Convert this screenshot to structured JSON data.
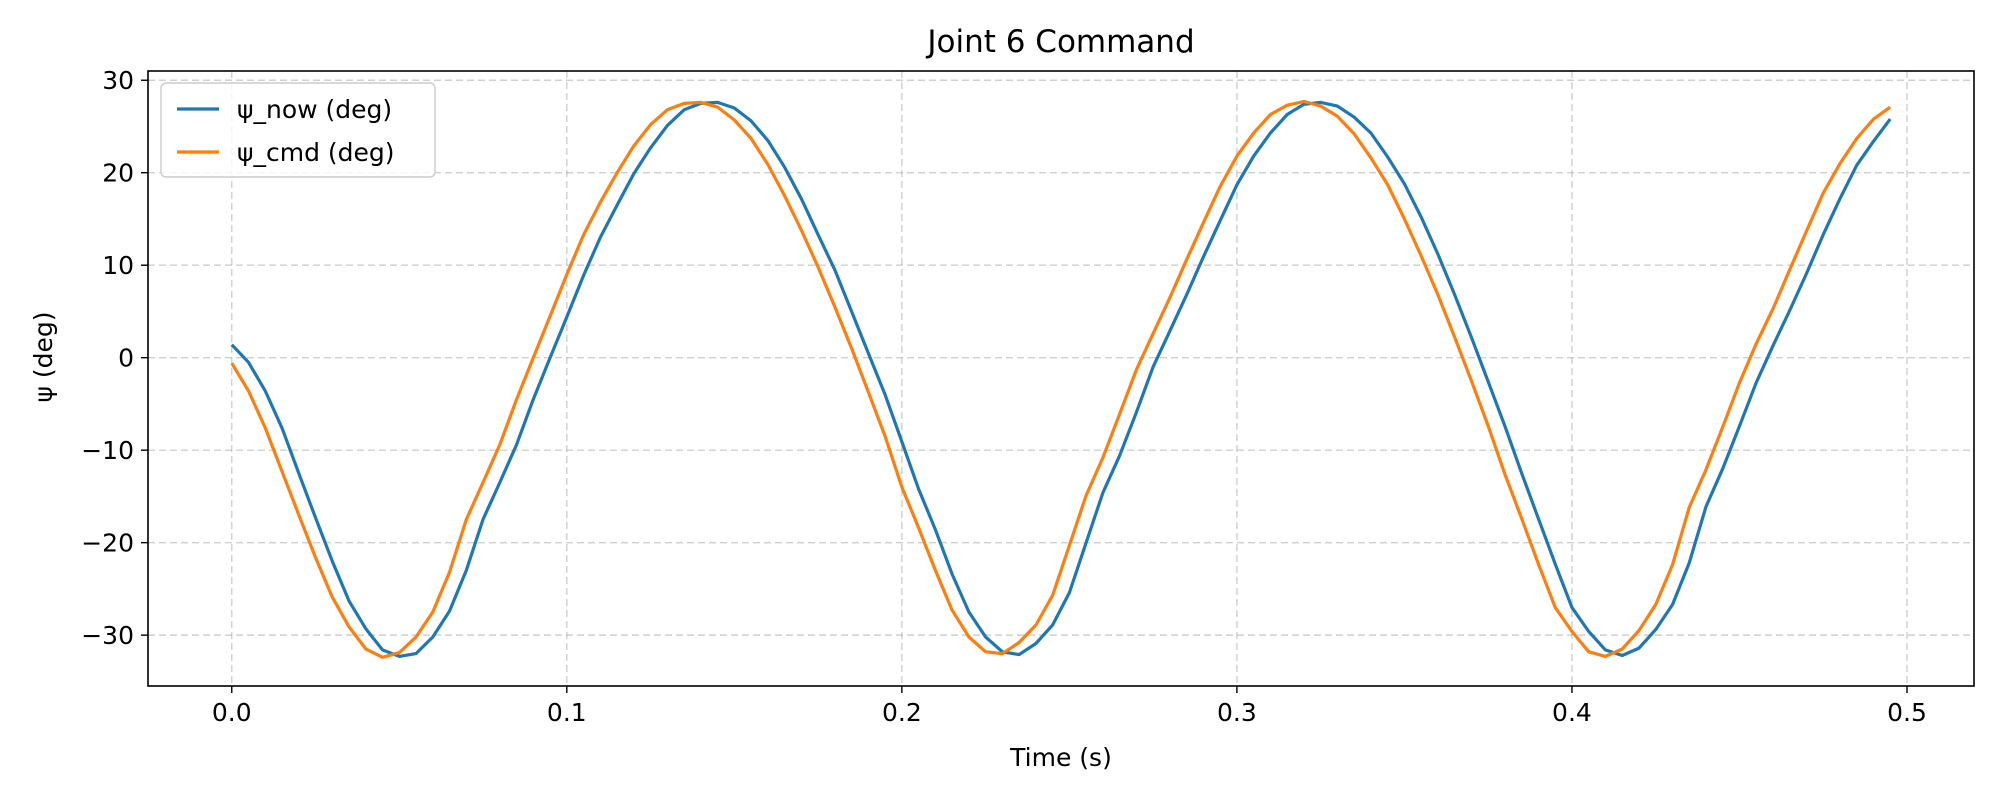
{
  "chart_data": {
    "type": "line",
    "title": "Joint 6 Command",
    "xlabel": "Time (s)",
    "ylabel": "ψ (deg)",
    "xlim": [
      -0.025,
      0.52
    ],
    "ylim": [
      -35.5,
      31
    ],
    "xticks": [
      0.0,
      0.1,
      0.2,
      0.3,
      0.4,
      0.5
    ],
    "xtick_labels": [
      "0.0",
      "0.1",
      "0.2",
      "0.3",
      "0.4",
      "0.5"
    ],
    "yticks": [
      -30,
      -20,
      -10,
      0,
      10,
      20,
      30
    ],
    "ytick_labels": [
      "−30",
      "−20",
      "−10",
      "0",
      "10",
      "20",
      "30"
    ],
    "grid": true,
    "legend_position": "top-left",
    "series": [
      {
        "name": "ψ_now (deg)",
        "color": "#1f77b4",
        "x": [
          0.0,
          0.005,
          0.01,
          0.015,
          0.02,
          0.025,
          0.03,
          0.035,
          0.04,
          0.045,
          0.05,
          0.055,
          0.06,
          0.065,
          0.07,
          0.075,
          0.08,
          0.085,
          0.09,
          0.095,
          0.1,
          0.105,
          0.11,
          0.115,
          0.12,
          0.125,
          0.13,
          0.135,
          0.14,
          0.145,
          0.15,
          0.155,
          0.16,
          0.165,
          0.17,
          0.175,
          0.18,
          0.185,
          0.19,
          0.195,
          0.2,
          0.205,
          0.21,
          0.215,
          0.22,
          0.225,
          0.23,
          0.235,
          0.24,
          0.245,
          0.25,
          0.255,
          0.26,
          0.265,
          0.27,
          0.275,
          0.28,
          0.285,
          0.29,
          0.295,
          0.3,
          0.305,
          0.31,
          0.315,
          0.32,
          0.325,
          0.33,
          0.335,
          0.34,
          0.345,
          0.35,
          0.355,
          0.36,
          0.365,
          0.37,
          0.375,
          0.38,
          0.385,
          0.39,
          0.395,
          0.4,
          0.405,
          0.41,
          0.415,
          0.42,
          0.425,
          0.43,
          0.435,
          0.44,
          0.445,
          0.45,
          0.455,
          0.46,
          0.465,
          0.47,
          0.475,
          0.48,
          0.485,
          0.49,
          0.495
        ],
        "y": [
          1.4,
          -0.5,
          -3.6,
          -7.6,
          -12.5,
          -17.3,
          -22.0,
          -26.3,
          -29.3,
          -31.6,
          -32.3,
          -32.0,
          -30.2,
          -27.4,
          -23.0,
          -17.5,
          -13.5,
          -9.4,
          -4.5,
          0.0,
          4.4,
          8.9,
          13.0,
          16.5,
          19.9,
          22.7,
          25.1,
          26.8,
          27.5,
          27.6,
          27.0,
          25.6,
          23.5,
          20.6,
          17.2,
          13.3,
          9.5,
          5.0,
          0.5,
          -4.0,
          -9.1,
          -14.2,
          -18.6,
          -23.4,
          -27.5,
          -30.2,
          -31.8,
          -32.1,
          -30.9,
          -28.9,
          -25.4,
          -20.0,
          -14.6,
          -10.6,
          -5.9,
          -1.0,
          2.9,
          6.8,
          10.9,
          14.8,
          18.7,
          21.8,
          24.3,
          26.3,
          27.4,
          27.6,
          27.2,
          26.0,
          24.3,
          21.7,
          18.8,
          15.2,
          11.2,
          6.8,
          2.2,
          -2.6,
          -7.4,
          -12.5,
          -17.4,
          -22.3,
          -27.0,
          -29.6,
          -31.6,
          -32.2,
          -31.4,
          -29.4,
          -26.7,
          -22.2,
          -16.1,
          -12.0,
          -7.4,
          -2.7,
          1.3,
          5.1,
          9.1,
          13.3,
          17.2,
          20.8,
          23.4,
          25.8
        ]
      },
      {
        "name": "ψ_cmd (deg)",
        "color": "#ff7f0e",
        "x": [
          0.0,
          0.005,
          0.01,
          0.015,
          0.02,
          0.025,
          0.03,
          0.035,
          0.04,
          0.045,
          0.05,
          0.055,
          0.06,
          0.065,
          0.07,
          0.075,
          0.08,
          0.085,
          0.09,
          0.095,
          0.1,
          0.105,
          0.11,
          0.115,
          0.12,
          0.125,
          0.13,
          0.135,
          0.14,
          0.145,
          0.15,
          0.155,
          0.16,
          0.165,
          0.17,
          0.175,
          0.18,
          0.185,
          0.19,
          0.195,
          0.2,
          0.205,
          0.21,
          0.215,
          0.22,
          0.225,
          0.23,
          0.235,
          0.24,
          0.245,
          0.25,
          0.255,
          0.26,
          0.265,
          0.27,
          0.275,
          0.28,
          0.285,
          0.29,
          0.295,
          0.3,
          0.305,
          0.31,
          0.315,
          0.32,
          0.325,
          0.33,
          0.335,
          0.34,
          0.345,
          0.35,
          0.355,
          0.36,
          0.365,
          0.37,
          0.375,
          0.38,
          0.385,
          0.39,
          0.395,
          0.4,
          0.405,
          0.41,
          0.415,
          0.42,
          0.425,
          0.43,
          0.435,
          0.44,
          0.445,
          0.45,
          0.455,
          0.46,
          0.465,
          0.47,
          0.475,
          0.48,
          0.485,
          0.49,
          0.495
        ],
        "y": [
          -0.6,
          -3.6,
          -7.6,
          -12.3,
          -17.0,
          -21.6,
          -25.9,
          -29.1,
          -31.5,
          -32.4,
          -31.9,
          -30.2,
          -27.5,
          -23.2,
          -17.5,
          -13.5,
          -9.4,
          -4.5,
          0.0,
          4.5,
          9.0,
          13.3,
          16.8,
          20.0,
          22.9,
          25.2,
          26.8,
          27.5,
          27.6,
          27.1,
          25.7,
          23.7,
          20.9,
          17.5,
          13.8,
          9.8,
          5.5,
          1.0,
          -3.7,
          -8.5,
          -14.0,
          -18.4,
          -23.0,
          -27.3,
          -30.2,
          -31.8,
          -32.0,
          -30.8,
          -28.9,
          -25.7,
          -20.3,
          -14.9,
          -10.8,
          -6.1,
          -1.3,
          2.6,
          6.5,
          10.6,
          14.6,
          18.5,
          21.8,
          24.3,
          26.3,
          27.3,
          27.7,
          27.2,
          26.1,
          24.2,
          21.6,
          18.7,
          15.0,
          11.0,
          6.8,
          2.2,
          -2.5,
          -7.4,
          -12.6,
          -17.4,
          -22.3,
          -27.0,
          -29.6,
          -31.8,
          -32.3,
          -31.5,
          -29.5,
          -26.7,
          -22.4,
          -16.2,
          -12.1,
          -7.5,
          -2.7,
          1.5,
          5.3,
          9.5,
          13.7,
          17.8,
          21.0,
          23.7,
          25.8,
          27.1
        ]
      }
    ]
  }
}
